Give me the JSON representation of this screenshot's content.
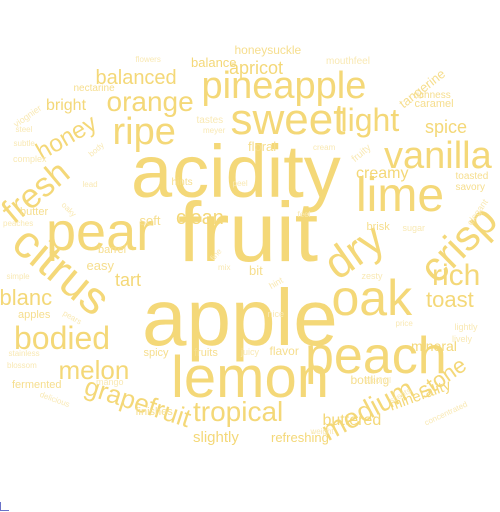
{
  "palette": {
    "dark": "#f4d878",
    "mid": "#f6de8e",
    "light": "#f9e9b4"
  },
  "cloud": {
    "words": [
      {
        "text": "fruit"
      },
      {
        "text": "acidity"
      },
      {
        "text": "apple"
      },
      {
        "text": "lemon"
      },
      {
        "text": "pear"
      },
      {
        "text": "peach"
      },
      {
        "text": "citrus"
      },
      {
        "text": "sweet"
      },
      {
        "text": "pineapple"
      },
      {
        "text": "oak"
      },
      {
        "text": "lime"
      },
      {
        "text": "crisp"
      },
      {
        "text": "dry"
      },
      {
        "text": "ripe"
      },
      {
        "text": "vanilla"
      },
      {
        "text": "fresh"
      },
      {
        "text": "light"
      },
      {
        "text": "bodied"
      },
      {
        "text": "tropical"
      },
      {
        "text": "rich"
      },
      {
        "text": "orange"
      },
      {
        "text": "grapefruit"
      },
      {
        "text": "medium"
      },
      {
        "text": "melon"
      },
      {
        "text": "honey"
      },
      {
        "text": "toast"
      },
      {
        "text": "stone"
      },
      {
        "text": "blanc"
      },
      {
        "text": "clean"
      },
      {
        "text": "creamy"
      },
      {
        "text": "balanced"
      },
      {
        "text": "spice"
      },
      {
        "text": "buttered"
      },
      {
        "text": "minerality"
      },
      {
        "text": "apricot"
      },
      {
        "text": "bright"
      },
      {
        "text": "tart"
      },
      {
        "text": "mineral"
      },
      {
        "text": "slightly"
      },
      {
        "text": "balance"
      },
      {
        "text": "floral"
      },
      {
        "text": "refreshing"
      },
      {
        "text": "honeysuckle"
      },
      {
        "text": "tangerine"
      },
      {
        "text": "flavor"
      },
      {
        "text": "bottling"
      },
      {
        "text": "soft"
      },
      {
        "text": "easy"
      },
      {
        "text": "bit"
      },
      {
        "text": "apples"
      },
      {
        "text": "butter"
      },
      {
        "text": "fermented"
      },
      {
        "text": "finishes"
      },
      {
        "text": "spicy"
      },
      {
        "text": "fruits"
      },
      {
        "text": "brisk"
      },
      {
        "text": "caramel"
      },
      {
        "text": "barrel"
      },
      {
        "text": "richness"
      },
      {
        "text": "tastes"
      },
      {
        "text": "nectarine"
      },
      {
        "text": "fruity"
      },
      {
        "text": "mouthfeel"
      },
      {
        "text": "hints"
      },
      {
        "text": "toasted"
      },
      {
        "text": "savory"
      },
      {
        "text": "elegant"
      },
      {
        "text": "sugar"
      },
      {
        "text": "zesty"
      },
      {
        "text": "lightly"
      },
      {
        "text": "lively"
      },
      {
        "text": "hint"
      },
      {
        "text": "juicy"
      },
      {
        "text": "mango"
      },
      {
        "text": "nice"
      },
      {
        "text": "price"
      },
      {
        "text": "weight"
      },
      {
        "text": "alcohol"
      },
      {
        "text": "scents"
      },
      {
        "text": "concentrated"
      },
      {
        "text": "delicious"
      },
      {
        "text": "stainless"
      },
      {
        "text": "blossom"
      },
      {
        "text": "peaches"
      },
      {
        "text": "simple"
      },
      {
        "text": "complex"
      },
      {
        "text": "steel"
      },
      {
        "text": "subtle"
      },
      {
        "text": "viognier"
      },
      {
        "text": "body"
      },
      {
        "text": "lead"
      },
      {
        "text": "meyer"
      },
      {
        "text": "flowers"
      },
      {
        "text": "cream"
      },
      {
        "text": "peel"
      },
      {
        "text": "feel"
      },
      {
        "text": "fine"
      },
      {
        "text": "mix"
      },
      {
        "text": "oaky"
      },
      {
        "text": "pears"
      }
    ]
  }
}
